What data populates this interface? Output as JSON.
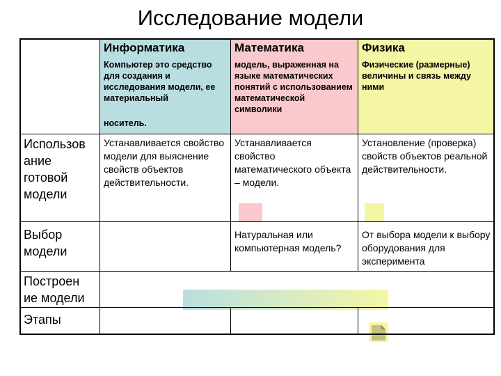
{
  "title": "Исследование модели",
  "colors": {
    "informatics": "#b9dee1",
    "mathematics": "#f9c9cd",
    "physics": "#f4f6a6"
  },
  "columns": [
    {
      "header": "Информатика",
      "description": "Компьютер это средство для создания и исследования модели, ее материальный",
      "description_tail": "носитель."
    },
    {
      "header": "Математика",
      "description": "модель, выраженная на языке математических понятий с использованием математической символики"
    },
    {
      "header": "Физика",
      "description": "Физические (размерные) величины и связь между ними"
    }
  ],
  "rows": [
    {
      "label": "Использов ание готовой модели",
      "cells": [
        "Устанавливается свойство модели для выяснение свойств объектов действительности.",
        "Устанавливается свойство математического объекта – модели.",
        "Установление (проверка) свойств объектов реальной действительности."
      ]
    },
    {
      "label": "Выбор модели",
      "cells": [
        "",
        "Натуральная или компьютерная модель?",
        "От выбора модели к выбору оборудования для эксперимента"
      ]
    },
    {
      "label": "Построен ие модели",
      "cells": []
    },
    {
      "label": "Этапы",
      "cells": [
        "",
        "",
        ""
      ]
    }
  ]
}
